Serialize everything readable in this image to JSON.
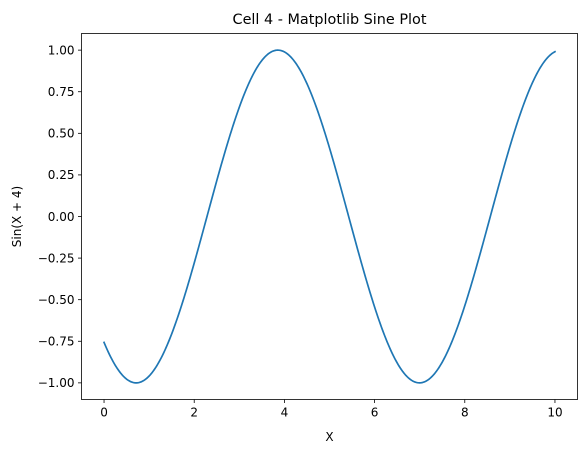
{
  "chart_data": {
    "type": "line",
    "title": "Cell 4 - Matplotlib Sine Plot",
    "xlabel": "X",
    "ylabel": "Sin(X + 4)",
    "xlim": [
      -0.5,
      10.5
    ],
    "ylim": [
      -1.1,
      1.1
    ],
    "x_ticks": [
      0,
      2,
      4,
      6,
      8,
      10
    ],
    "x_tick_labels": [
      "0",
      "2",
      "4",
      "6",
      "8",
      "10"
    ],
    "y_ticks": [
      -1.0,
      -0.75,
      -0.5,
      -0.25,
      0.0,
      0.25,
      0.5,
      0.75,
      1.0
    ],
    "y_tick_labels": [
      "−1.00",
      "−0.75",
      "−0.50",
      "−0.25",
      "0.00",
      "0.25",
      "0.50",
      "0.75",
      "1.00"
    ],
    "grid": false,
    "legend": "none",
    "series": [
      {
        "color": "#1f77b4",
        "function": "sin(x + 4)",
        "x": [
          0,
          0.25,
          0.5,
          0.75,
          1,
          1.25,
          1.5,
          1.75,
          2,
          2.25,
          2.5,
          2.75,
          3,
          3.25,
          3.5,
          3.75,
          4,
          4.25,
          4.5,
          4.75,
          5,
          5.25,
          5.5,
          5.75,
          6,
          6.25,
          6.5,
          6.75,
          7,
          7.25,
          7.5,
          7.75,
          8,
          8.25,
          8.5,
          8.75,
          9,
          9.25,
          9.5,
          9.75,
          10
        ],
        "y": [
          -0.757,
          -0.878,
          -0.966,
          -0.998,
          -0.959,
          -0.86,
          -0.706,
          -0.508,
          -0.279,
          -0.033,
          0.215,
          0.446,
          0.657,
          0.825,
          0.938,
          0.994,
          0.989,
          0.923,
          0.798,
          0.624,
          0.412,
          0.174,
          -0.071,
          -0.312,
          -0.544,
          -0.739,
          -0.882,
          -0.972,
          -0.999,
          -0.963,
          -0.871,
          -0.732,
          -0.537,
          -0.305,
          -0.063,
          0.182,
          0.42,
          0.63,
          0.8,
          0.924,
          0.991
        ]
      }
    ]
  }
}
